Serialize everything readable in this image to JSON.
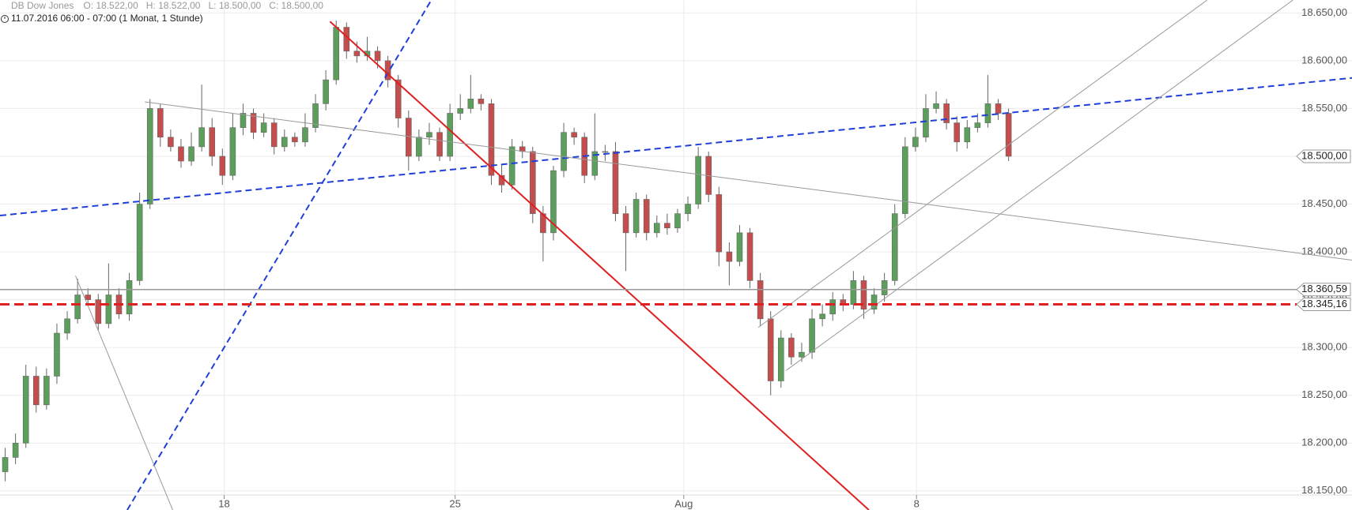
{
  "chart_data": {
    "type": "candlestick",
    "title": "DB Dow Jones",
    "ohlc_labels": [
      "O: 18.522,00",
      "H: 18.522,00",
      "L: 18.500,00",
      "C: 18.500,00"
    ],
    "subtitle": "11.07.2016 06:00 - 07:00 (1 Monat, 1 Stunde)",
    "xlim": [
      0,
      130.7
    ],
    "ylim": [
      18130,
      18663.5
    ],
    "grid": true,
    "xticks": [
      {
        "value": 21.67,
        "label": "18"
      },
      {
        "value": 44,
        "label": "25"
      },
      {
        "value": 66.1,
        "label": "Aug"
      },
      {
        "value": 88.6,
        "label": "8"
      }
    ],
    "yticks": [
      {
        "value": 18150,
        "label": "18.150,00"
      },
      {
        "value": 18200,
        "label": "18.200,00"
      },
      {
        "value": 18250,
        "label": "18.250,00"
      },
      {
        "value": 18300,
        "label": "18.300,00"
      },
      {
        "value": 18350,
        "label": "18.350,00"
      },
      {
        "value": 18400,
        "label": "18.400,00"
      },
      {
        "value": 18450,
        "label": "18.450,00"
      },
      {
        "value": 18500,
        "label": "18.500,00"
      },
      {
        "value": 18550,
        "label": "18.550,00"
      },
      {
        "value": 18600,
        "label": "18.600,00"
      },
      {
        "value": 18650,
        "label": "18.650,00"
      }
    ],
    "up_color": "#5c9e5c",
    "down_color": "#c44d4d",
    "open": [
      18170,
      18185,
      18200,
      18270,
      18240,
      18270,
      18315,
      18330,
      18355,
      18350,
      18325,
      18355,
      18335,
      18370,
      18450,
      18550,
      18520,
      18510,
      18495,
      18510,
      18530,
      18500,
      18480,
      18530,
      18545,
      18525,
      18535,
      18510,
      18520,
      18515,
      18530,
      18555,
      18580,
      18635,
      18610,
      18605,
      18610,
      18600,
      18580,
      18540,
      18500,
      18520,
      18525,
      18500,
      18545,
      18550,
      18560,
      18555,
      18480,
      18470,
      18510,
      18505,
      18440,
      18420,
      18485,
      18525,
      18520,
      18480,
      18505,
      18505,
      18440,
      18420,
      18455,
      18420,
      18430,
      18425,
      18440,
      18450,
      18500,
      18460,
      18400,
      18390,
      18420,
      18370,
      18330,
      18265,
      18310,
      18290,
      18295,
      18330,
      18335,
      18350,
      18345,
      18370,
      18340,
      18355,
      18370,
      18440,
      18510,
      18520,
      18550,
      18555,
      18535,
      18515,
      18530,
      18535,
      18555,
      18545
    ],
    "high": [
      18195,
      18210,
      18282,
      18280,
      18278,
      18325,
      18338,
      18372,
      18362,
      18356,
      18388,
      18362,
      18378,
      18462,
      18560,
      18555,
      18528,
      18518,
      18525,
      18575,
      18540,
      18508,
      18545,
      18555,
      18550,
      18545,
      18540,
      18528,
      18525,
      18545,
      18565,
      18590,
      18642,
      18640,
      18620,
      18625,
      18615,
      18605,
      18585,
      18548,
      18528,
      18535,
      18530,
      18555,
      18565,
      18585,
      18565,
      18560,
      18492,
      18518,
      18516,
      18510,
      18448,
      18490,
      18535,
      18530,
      18525,
      18545,
      18512,
      18515,
      18448,
      18462,
      18460,
      18438,
      18440,
      18445,
      18458,
      18510,
      18505,
      18468,
      18410,
      18428,
      18425,
      18378,
      18338,
      18318,
      18315,
      18305,
      18340,
      18345,
      18358,
      18356,
      18380,
      18375,
      18362,
      18378,
      18450,
      18520,
      18530,
      18565,
      18568,
      18560,
      18542,
      18538,
      18545,
      18585,
      18560,
      18550
    ],
    "low": [
      18160,
      18178,
      18195,
      18232,
      18235,
      18262,
      18308,
      18325,
      18345,
      18318,
      18320,
      18330,
      18328,
      18365,
      18445,
      18510,
      18505,
      18488,
      18490,
      18505,
      18490,
      18470,
      18475,
      18522,
      18518,
      18520,
      18502,
      18505,
      18510,
      18510,
      18525,
      18548,
      18575,
      18602,
      18598,
      18600,
      18592,
      18572,
      18530,
      18485,
      18495,
      18512,
      18495,
      18495,
      18538,
      18545,
      18548,
      18470,
      18462,
      18465,
      18498,
      18430,
      18390,
      18412,
      18478,
      18512,
      18472,
      18475,
      18495,
      18432,
      18380,
      18415,
      18412,
      18415,
      18418,
      18420,
      18432,
      18445,
      18452,
      18385,
      18365,
      18385,
      18362,
      18322,
      18250,
      18258,
      18282,
      18285,
      18288,
      18322,
      18328,
      18338,
      18340,
      18330,
      18335,
      18348,
      18365,
      18435,
      18505,
      18515,
      18545,
      18528,
      18505,
      18508,
      18525,
      18530,
      18538,
      18495
    ],
    "close": [
      18185,
      18200,
      18270,
      18240,
      18270,
      18315,
      18330,
      18355,
      18350,
      18325,
      18355,
      18335,
      18370,
      18450,
      18550,
      18520,
      18510,
      18495,
      18510,
      18530,
      18500,
      18480,
      18530,
      18545,
      18525,
      18535,
      18510,
      18520,
      18515,
      18530,
      18555,
      18580,
      18635,
      18610,
      18605,
      18610,
      18600,
      18580,
      18540,
      18500,
      18520,
      18525,
      18500,
      18545,
      18550,
      18560,
      18555,
      18480,
      18470,
      18510,
      18505,
      18440,
      18420,
      18485,
      18525,
      18520,
      18480,
      18505,
      18505,
      18440,
      18420,
      18455,
      18420,
      18430,
      18425,
      18440,
      18450,
      18500,
      18460,
      18400,
      18390,
      18420,
      18370,
      18330,
      18265,
      18310,
      18290,
      18295,
      18330,
      18335,
      18350,
      18345,
      18370,
      18340,
      18355,
      18370,
      18440,
      18510,
      18520,
      18550,
      18555,
      18535,
      18515,
      18530,
      18535,
      18555,
      18545,
      18500
    ],
    "trendlines": [
      {
        "x": [
          0,
          130.7
        ],
        "y": [
          18438,
          18582
        ],
        "color": "#1f3fd8",
        "dashed": true,
        "width": 2
      },
      {
        "x": [
          12.3,
          41.7
        ],
        "y": [
          18130,
          18663.5
        ],
        "color": "#1f3fd8",
        "dashed": true,
        "width": 2
      },
      {
        "x": [
          31.9,
          84
        ],
        "y": [
          18641,
          18130
        ],
        "color": "#e02020",
        "dashed": false,
        "width": 2
      },
      {
        "x": [
          14,
          130.7
        ],
        "y": [
          18557,
          18391.4
        ],
        "color": "#999999",
        "dashed": false,
        "width": 1
      },
      {
        "x": [
          7.3,
          16.7
        ],
        "y": [
          18375,
          18130
        ],
        "color": "#999999",
        "dashed": false,
        "width": 1
      },
      {
        "x": [
          76,
          125
        ],
        "y": [
          18276,
          18663.5
        ],
        "color": "#999999",
        "dashed": false,
        "width": 1
      },
      {
        "x": [
          73.3,
          116.7
        ],
        "y": [
          18321,
          18663.5
        ],
        "color": "#999999",
        "dashed": false,
        "width": 1
      }
    ],
    "levels": [
      {
        "value": 18360.59,
        "label": "18.360,59",
        "color": "#999999",
        "dashed": false,
        "width": 1.5
      },
      {
        "value": 18345.16,
        "label": "18.345,16",
        "color": "#e02020",
        "dashed": true,
        "width": 3
      }
    ],
    "last_price": {
      "value": 18500,
      "label": "18.500,00"
    }
  }
}
